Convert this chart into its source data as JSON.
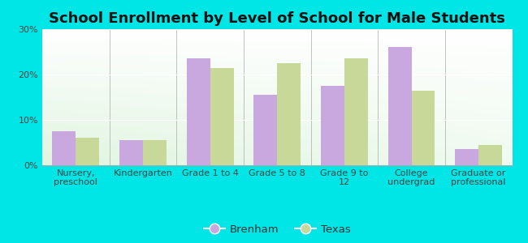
{
  "title": "School Enrollment by Level of School for Male Students",
  "categories": [
    "Nursery,\npreschool",
    "Kindergarten",
    "Grade 1 to 4",
    "Grade 5 to 8",
    "Grade 9 to\n12",
    "College\nundergrad",
    "Graduate or\nprofessional"
  ],
  "brenham": [
    7.5,
    5.5,
    23.5,
    15.5,
    17.5,
    26.0,
    3.5
  ],
  "texas": [
    6.0,
    5.5,
    21.5,
    22.5,
    23.5,
    16.5,
    4.5
  ],
  "brenham_color": "#c9a8e0",
  "texas_color": "#c8d898",
  "background_color": "#00e5e5",
  "plot_bg_color": "#e8f5e0",
  "ylim": [
    0,
    30
  ],
  "yticks": [
    0,
    10,
    20,
    30
  ],
  "ytick_labels": [
    "0%",
    "10%",
    "20%",
    "30%"
  ],
  "legend_labels": [
    "Brenham",
    "Texas"
  ],
  "bar_width": 0.35,
  "title_fontsize": 13,
  "tick_fontsize": 8,
  "legend_fontsize": 9.5
}
